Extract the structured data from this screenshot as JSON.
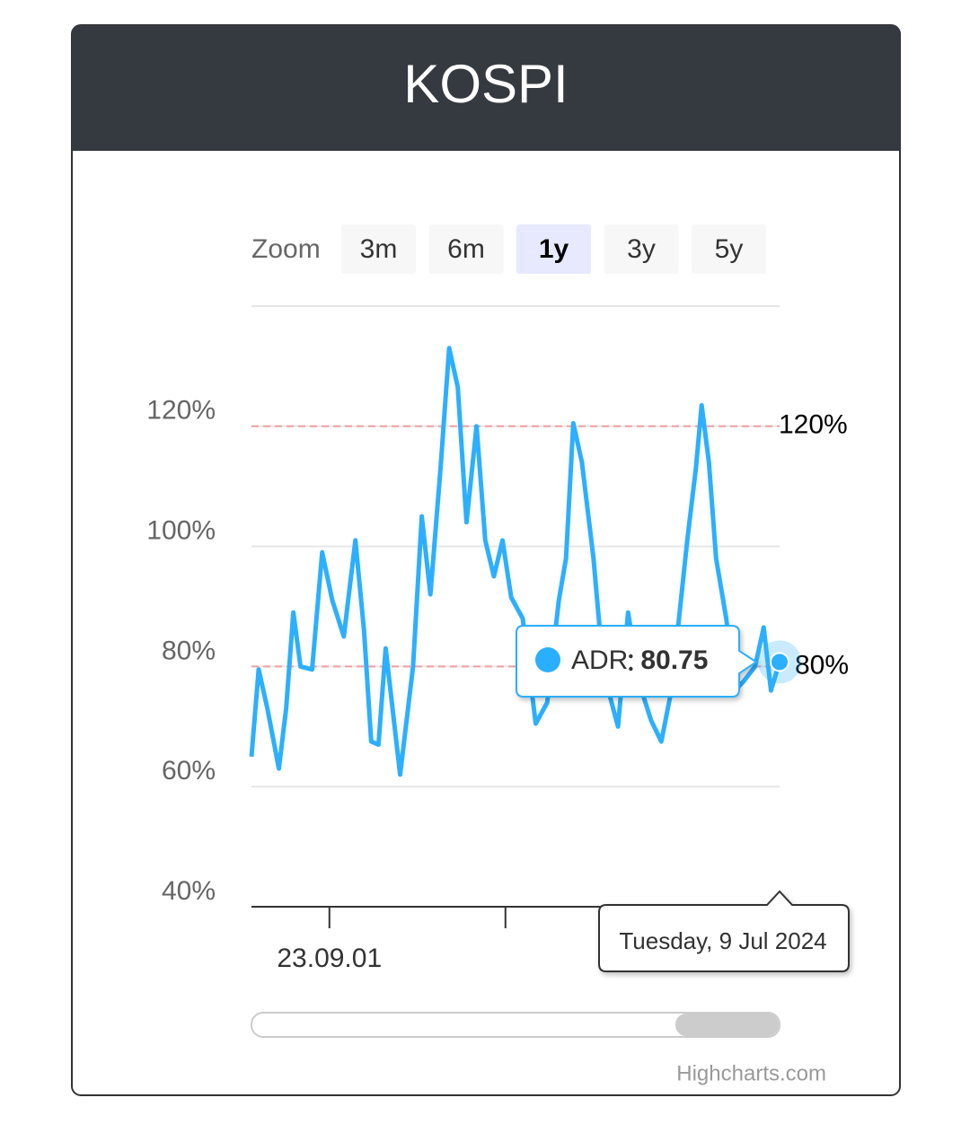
{
  "chart_data": {
    "type": "line",
    "title": "KOSPI",
    "range_selector": {
      "label": "Zoom",
      "buttons": [
        "3m",
        "6m",
        "1y",
        "3y",
        "5y"
      ],
      "selected": 2
    },
    "x": [
      "2023-07-09",
      "2023-07-14",
      "2023-07-20",
      "2023-07-28",
      "2023-08-02",
      "2023-08-07",
      "2023-08-12",
      "2023-08-20",
      "2023-08-27",
      "2023-09-03",
      "2023-09-11",
      "2023-09-19",
      "2023-09-25",
      "2023-09-30",
      "2023-10-05",
      "2023-10-10",
      "2023-10-20",
      "2023-10-29",
      "2023-11-04",
      "2023-11-10",
      "2023-11-17",
      "2023-11-23",
      "2023-11-29",
      "2023-12-05",
      "2023-12-12",
      "2023-12-18",
      "2023-12-24",
      "2023-12-30",
      "2024-01-05",
      "2024-01-13",
      "2024-01-22",
      "2024-01-30",
      "2024-02-07",
      "2024-02-12",
      "2024-02-17",
      "2024-02-23",
      "2024-03-02",
      "2024-03-09",
      "2024-03-19",
      "2024-03-26",
      "2024-04-03",
      "2024-04-11",
      "2024-04-18",
      "2024-04-25",
      "2024-05-06",
      "2024-05-12",
      "2024-05-16",
      "2024-05-21",
      "2024-05-26",
      "2024-06-02",
      "2024-06-08",
      "2024-06-14",
      "2024-06-22",
      "2024-06-28",
      "2024-07-03",
      "2024-07-09"
    ],
    "series": [
      {
        "name": "ADR",
        "color": "#2caffe",
        "values": [
          65,
          79.5,
          73,
          63,
          73,
          89,
          80,
          79.5,
          99,
          91,
          85,
          101,
          86,
          67.5,
          67,
          83,
          62,
          80,
          105,
          92,
          113,
          133,
          126.5,
          104,
          120,
          101,
          95,
          101,
          91.5,
          88,
          70.5,
          74,
          91,
          98,
          120.5,
          114,
          98,
          79,
          70,
          89,
          77,
          71,
          67.5,
          76,
          101,
          113,
          123.5,
          114,
          98,
          88,
          76,
          77.5,
          80,
          86.5,
          76,
          80.75
        ]
      }
    ],
    "xlim": [
      "2023-07-09",
      "2024-07-09"
    ],
    "xticks": [
      {
        "value": "2023-09-01",
        "label": "23.09.01"
      },
      {
        "value": "2024-01-01",
        "label": null
      }
    ],
    "ylim": [
      40,
      140
    ],
    "yticks": [
      {
        "value": 40,
        "label": "40%"
      },
      {
        "value": 60,
        "label": "60%"
      },
      {
        "value": 80,
        "label": "80%"
      },
      {
        "value": 100,
        "label": "100%"
      },
      {
        "value": 120,
        "label": "120%"
      }
    ],
    "grid": true,
    "plot_lines": [
      {
        "value": 120,
        "label": "120%",
        "color": "#f0a0a0"
      },
      {
        "value": 80,
        "label": "80%",
        "color": "#f0a0a0"
      }
    ],
    "tooltip": {
      "point": 55,
      "date": "Tuesday, 9 Jul 2024"
    },
    "credits": "Highcharts.com"
  }
}
